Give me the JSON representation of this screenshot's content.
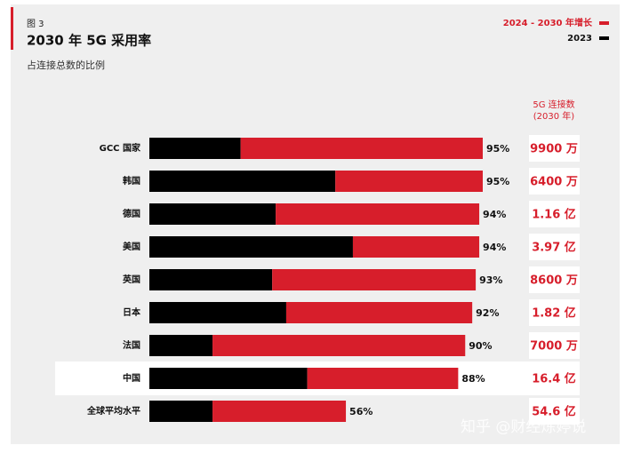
{
  "chart_data": {
    "type": "bar",
    "orientation": "horizontal",
    "stacked": true,
    "figure_label": "图 3",
    "title": "2030 年 5G 采用率",
    "subtitle": "占连接总数的比例",
    "categories": [
      "GCC 国家",
      "韩国",
      "德国",
      "美国",
      "英国",
      "日本",
      "法国",
      "中国",
      "全球平均水平"
    ],
    "series": [
      {
        "name": "2023",
        "color": "#000000",
        "values": [
          26,
          53,
          36,
          58,
          35,
          39,
          18,
          45,
          18
        ]
      },
      {
        "name": "2024 - 2030 年增长",
        "color": "#d71e2b",
        "values": [
          69,
          42,
          58,
          36,
          58,
          53,
          72,
          43,
          38
        ]
      }
    ],
    "totals": [
      95,
      95,
      94,
      94,
      93,
      92,
      90,
      88,
      56
    ],
    "total_labels": [
      "95%",
      "95%",
      "94%",
      "94%",
      "93%",
      "92%",
      "90%",
      "88%",
      "56%"
    ],
    "xlim": [
      0,
      100
    ],
    "highlight_category": "中国",
    "connections_title": [
      "5G 连接数",
      "(2030 年)"
    ],
    "connections": [
      "9900 万",
      "6400 万",
      "1.16 亿",
      "3.97 亿",
      "8600 万",
      "1.82 亿",
      "7000 万",
      "16.4 亿",
      "54.6 亿"
    ]
  },
  "watermark": "知乎 @财经炼婷说"
}
